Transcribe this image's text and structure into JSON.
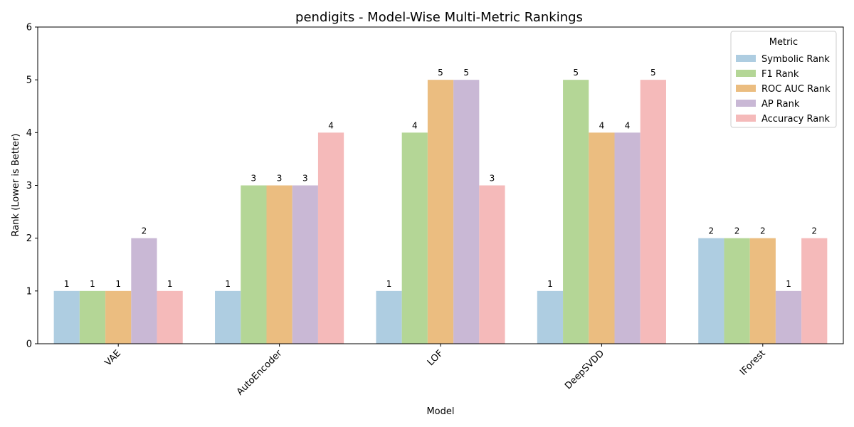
{
  "chart_data": {
    "type": "bar",
    "title": "pendigits - Model-Wise Multi-Metric Rankings",
    "xlabel": "Model",
    "ylabel": "Rank (Lower is Better)",
    "ylim": [
      0,
      6
    ],
    "yticks": [
      "0",
      "1",
      "2",
      "3",
      "4",
      "5",
      "6"
    ],
    "categories": [
      "VAE",
      "AutoEncoder",
      "LOF",
      "DeepSVDD",
      "IForest"
    ],
    "series": [
      {
        "name": "Symbolic Rank",
        "color": "#aecde1",
        "values": [
          1,
          1,
          1,
          1,
          2
        ]
      },
      {
        "name": "F1 Rank",
        "color": "#b4d696",
        "values": [
          1,
          3,
          4,
          5,
          2
        ]
      },
      {
        "name": "ROC AUC Rank",
        "color": "#ebbd80",
        "values": [
          1,
          3,
          5,
          4,
          2
        ]
      },
      {
        "name": "AP Rank",
        "color": "#c9b8d5",
        "values": [
          2,
          3,
          5,
          4,
          1
        ]
      },
      {
        "name": "Accuracy Rank",
        "color": "#f5baba",
        "values": [
          1,
          4,
          3,
          5,
          2
        ]
      }
    ],
    "legend": {
      "title": "Metric",
      "position": "top-right"
    },
    "grid": false
  }
}
